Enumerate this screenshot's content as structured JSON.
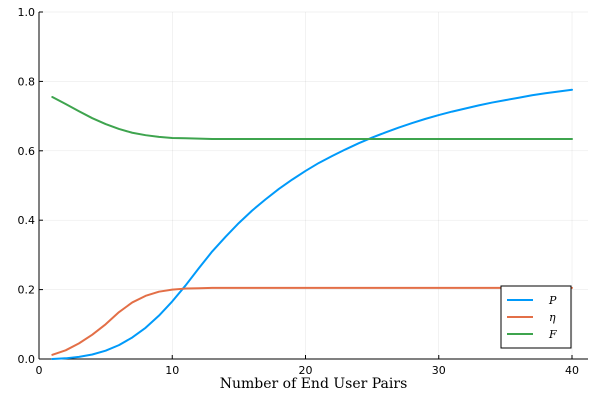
{
  "chart_data": {
    "type": "line",
    "title": "",
    "xlabel": "Number of End User Pairs",
    "ylabel": "",
    "xlim": [
      0,
      41.2
    ],
    "ylim": [
      0,
      1
    ],
    "xticks": [
      0,
      10,
      20,
      30,
      40
    ],
    "xtick_labels": [
      "0",
      "10",
      "20",
      "30",
      "40"
    ],
    "yticks": [
      0,
      0.2,
      0.4,
      0.6,
      0.8,
      1.0
    ],
    "ytick_labels": [
      "0.0",
      "0.2",
      "0.4",
      "0.6",
      "0.8",
      "1.0"
    ],
    "grid": true,
    "legend_position": "bottom-right",
    "x": [
      1,
      2,
      3,
      4,
      5,
      6,
      7,
      8,
      9,
      10,
      11,
      12,
      13,
      14,
      15,
      16,
      17,
      18,
      19,
      20,
      21,
      22,
      23,
      24,
      25,
      26,
      27,
      28,
      29,
      30,
      31,
      32,
      33,
      34,
      35,
      36,
      37,
      38,
      39,
      40
    ],
    "series": [
      {
        "name": "P",
        "color": "#009AFA",
        "values": [
          0.0,
          0.002,
          0.006,
          0.013,
          0.024,
          0.04,
          0.062,
          0.09,
          0.125,
          0.166,
          0.212,
          0.262,
          0.31,
          0.352,
          0.392,
          0.428,
          0.46,
          0.49,
          0.517,
          0.542,
          0.565,
          0.585,
          0.604,
          0.622,
          0.638,
          0.653,
          0.667,
          0.68,
          0.692,
          0.703,
          0.713,
          0.722,
          0.731,
          0.739,
          0.746,
          0.753,
          0.76,
          0.766,
          0.771,
          0.776
        ]
      },
      {
        "name": "η",
        "color": "#E36F47",
        "values": [
          0.012,
          0.025,
          0.045,
          0.07,
          0.1,
          0.135,
          0.163,
          0.182,
          0.194,
          0.2,
          0.203,
          0.204,
          0.205,
          0.205,
          0.205,
          0.205,
          0.205,
          0.205,
          0.205,
          0.205,
          0.205,
          0.205,
          0.205,
          0.205,
          0.205,
          0.205,
          0.205,
          0.205,
          0.205,
          0.205,
          0.205,
          0.205,
          0.205,
          0.205,
          0.205,
          0.205,
          0.205,
          0.205,
          0.205,
          0.205
        ]
      },
      {
        "name": "F",
        "color": "#3EA44E",
        "values": [
          0.755,
          0.735,
          0.714,
          0.694,
          0.677,
          0.663,
          0.652,
          0.645,
          0.64,
          0.637,
          0.636,
          0.635,
          0.634,
          0.634,
          0.634,
          0.634,
          0.634,
          0.634,
          0.634,
          0.634,
          0.634,
          0.634,
          0.634,
          0.634,
          0.634,
          0.634,
          0.634,
          0.634,
          0.634,
          0.634,
          0.634,
          0.634,
          0.634,
          0.634,
          0.634,
          0.634,
          0.634,
          0.634,
          0.634,
          0.634
        ]
      }
    ]
  }
}
